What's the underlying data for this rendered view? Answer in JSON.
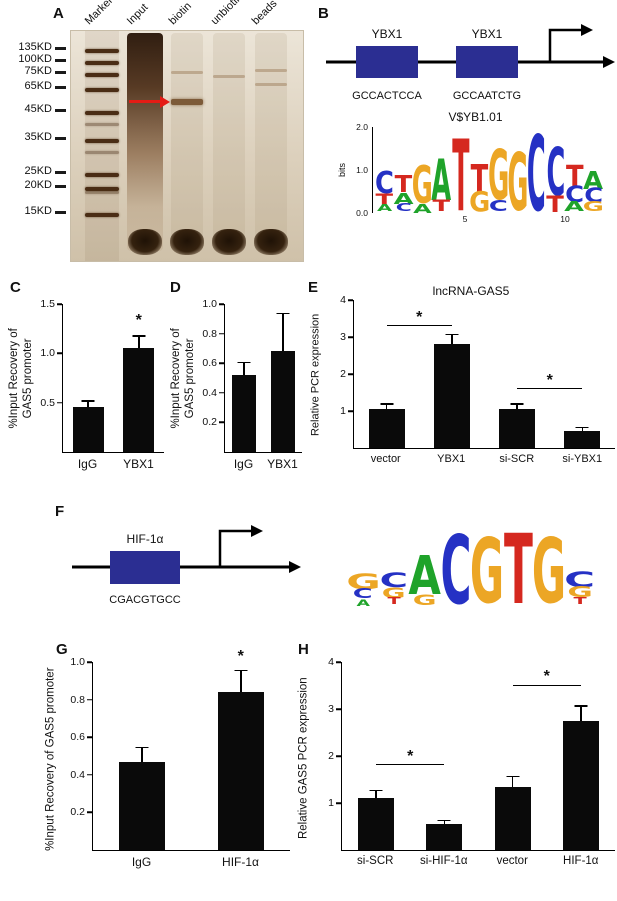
{
  "colors": {
    "bar": "#0a0a0a",
    "box_blue": "#2b2e92",
    "arrow_red": "#e51c15",
    "nt_A": "#1fa32a",
    "nt_C": "#2531c4",
    "nt_G": "#eca625",
    "nt_T": "#d5281f"
  },
  "panelA": {
    "label": "A",
    "lane_labels": [
      "Marker",
      "Input",
      "biotin",
      "unbiotin",
      "beads"
    ],
    "mw_labels": [
      "135KD",
      "100KD",
      "75KD",
      "65KD",
      "45KD",
      "35KD",
      "25KD",
      "20KD",
      "15KD"
    ]
  },
  "panelB": {
    "label": "B",
    "sites": [
      {
        "name": "YBX1",
        "sequence": "GCCACTCCA"
      },
      {
        "name": "YBX1",
        "sequence": "GCCAATCTG"
      }
    ],
    "logo": {
      "title": "V$YB1.01",
      "ylabel": "bits",
      "yticks": [
        "2.0",
        "1.0",
        "0.0"
      ],
      "xticks": [
        "5",
        "10"
      ],
      "columns": [
        [
          [
            "C",
            0.55
          ],
          [
            "T",
            0.3
          ],
          [
            "A",
            0.18
          ]
        ],
        [
          [
            "T",
            0.42
          ],
          [
            "A",
            0.28
          ],
          [
            "C",
            0.2
          ]
        ],
        [
          [
            "G",
            0.95
          ],
          [
            "A",
            0.22
          ]
        ],
        [
          [
            "A",
            1.05
          ],
          [
            "T",
            0.3
          ]
        ],
        [
          [
            "T",
            1.8
          ]
        ],
        [
          [
            "T",
            0.7
          ],
          [
            "G",
            0.5
          ]
        ],
        [
          [
            "G",
            1.25
          ],
          [
            "C",
            0.28
          ]
        ],
        [
          [
            "G",
            1.45
          ]
        ],
        [
          [
            "C",
            1.9
          ]
        ],
        [
          [
            "C",
            1.2
          ],
          [
            "T",
            0.4
          ]
        ],
        [
          [
            "T",
            0.55
          ],
          [
            "C",
            0.4
          ],
          [
            "A",
            0.25
          ]
        ],
        [
          [
            "A",
            0.45
          ],
          [
            "C",
            0.35
          ],
          [
            "G",
            0.25
          ]
        ]
      ]
    }
  },
  "panelF": {
    "label": "F",
    "site": {
      "name": "HIF-1α",
      "sequence": "CGACGTGCC"
    },
    "logo": {
      "columns": [
        [
          [
            "G",
            0.45
          ],
          [
            "C",
            0.28
          ],
          [
            "A",
            0.18
          ]
        ],
        [
          [
            "C",
            0.4
          ],
          [
            "G",
            0.3
          ],
          [
            "T",
            0.2
          ]
        ],
        [
          [
            "A",
            1.1
          ],
          [
            "G",
            0.3
          ]
        ],
        [
          [
            "C",
            1.95
          ]
        ],
        [
          [
            "G",
            1.85
          ]
        ],
        [
          [
            "T",
            2.0
          ]
        ],
        [
          [
            "G",
            1.85
          ]
        ],
        [
          [
            "C",
            0.45
          ],
          [
            "G",
            0.32
          ],
          [
            "T",
            0.2
          ]
        ]
      ]
    }
  },
  "chart_data": [
    {
      "panel": "C",
      "type": "bar",
      "title": "",
      "ylabel_lines": [
        "%Input Recovery of",
        "GAS5 promoter"
      ],
      "categories": [
        "IgG",
        "YBX1"
      ],
      "values": [
        0.46,
        1.05
      ],
      "errors": [
        0.05,
        0.12
      ],
      "ylim": [
        0,
        1.5
      ],
      "yticks": [
        "0.5",
        "1.0",
        "1.5"
      ],
      "annotations": [
        {
          "kind": "star",
          "bar": 1,
          "y": 1.28,
          "label": "*"
        }
      ]
    },
    {
      "panel": "D",
      "type": "bar",
      "title": "",
      "ylabel_lines": [
        "%Input Recovery of",
        "GAS5 promoter"
      ],
      "categories": [
        "IgG",
        "YBX1"
      ],
      "values": [
        0.52,
        0.68
      ],
      "errors": [
        0.08,
        0.25
      ],
      "ylim": [
        0,
        1.0
      ],
      "yticks": [
        "0.2",
        "0.4",
        "0.6",
        "0.8",
        "1.0"
      ],
      "annotations": []
    },
    {
      "panel": "E",
      "type": "bar",
      "title": "lncRNA-GAS5",
      "ylabel_lines": [
        "Relative PCR expression"
      ],
      "categories": [
        "vector",
        "YBX1",
        "si-SCR",
        "si-YBX1"
      ],
      "values": [
        1.05,
        2.8,
        1.05,
        0.45
      ],
      "errors": [
        0.12,
        0.25,
        0.12,
        0.08
      ],
      "ylim": [
        0,
        4
      ],
      "yticks": [
        "1",
        "2",
        "3",
        "4"
      ],
      "annotations": [
        {
          "kind": "bracket",
          "from": 0,
          "to": 1,
          "y": 3.3,
          "label": "*"
        },
        {
          "kind": "bracket",
          "from": 2,
          "to": 3,
          "y": 1.6,
          "label": "*"
        }
      ]
    },
    {
      "panel": "G",
      "type": "bar",
      "title": "",
      "ylabel_lines": [
        "%Input Recovery of GAS5 promoter"
      ],
      "categories": [
        "IgG",
        "HIF-1α"
      ],
      "values": [
        0.47,
        0.84
      ],
      "errors": [
        0.07,
        0.11
      ],
      "ylim": [
        0,
        1.0
      ],
      "yticks": [
        "0.2",
        "0.4",
        "0.6",
        "0.8",
        "1.0"
      ],
      "annotations": [
        {
          "kind": "star",
          "bar": 1,
          "y": 1.0,
          "label": "*"
        }
      ]
    },
    {
      "panel": "H",
      "type": "bar",
      "title": "",
      "ylabel_lines": [
        "Relative GAS5  PCR expression"
      ],
      "categories": [
        "si-SCR",
        "si-HIF-1α",
        "vector",
        "HIF-1α"
      ],
      "values": [
        1.1,
        0.55,
        1.35,
        2.75
      ],
      "errors": [
        0.15,
        0.06,
        0.2,
        0.3
      ],
      "ylim": [
        0,
        4
      ],
      "yticks": [
        "1",
        "2",
        "3",
        "4"
      ],
      "annotations": [
        {
          "kind": "bracket",
          "from": 0,
          "to": 1,
          "y": 1.8,
          "label": "*"
        },
        {
          "kind": "bracket",
          "from": 2,
          "to": 3,
          "y": 3.5,
          "label": "*"
        }
      ]
    }
  ]
}
